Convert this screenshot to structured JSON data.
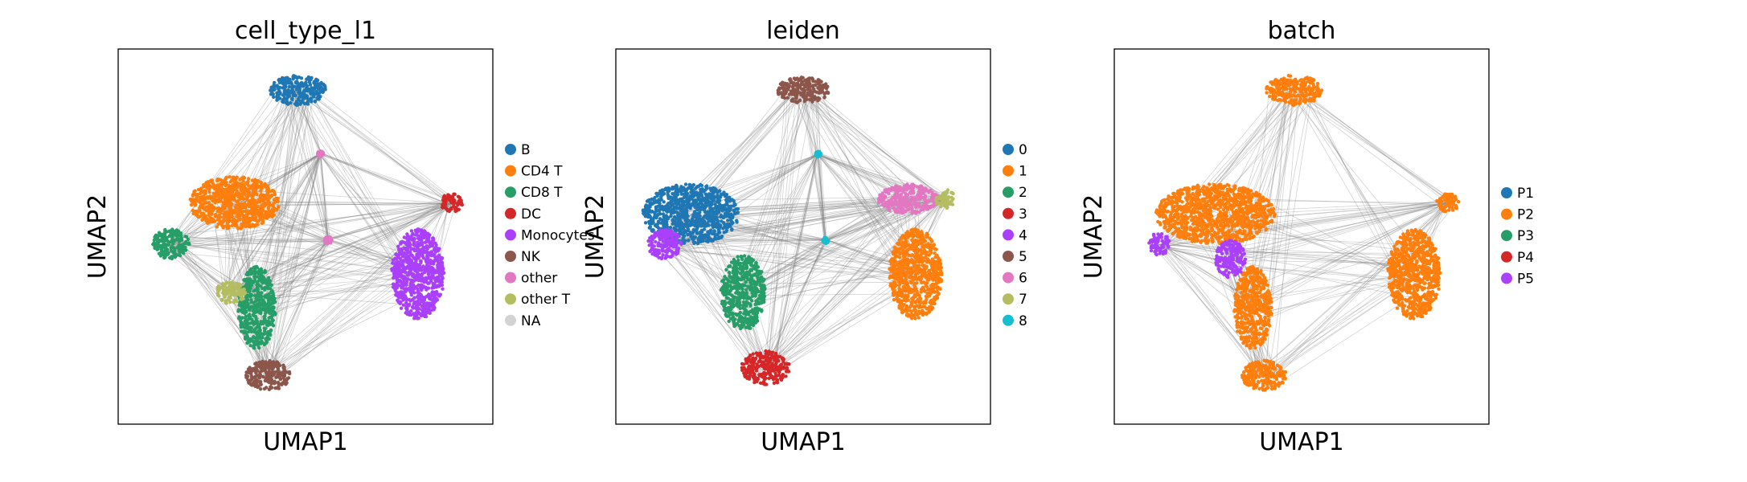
{
  "chart_data": [
    {
      "type": "scatter",
      "title": "cell_type_l1",
      "xlabel": "UMAP1",
      "ylabel": "UMAP2",
      "grid": false,
      "ticks": false,
      "legend_position": "right",
      "legend": [
        {
          "label": "B",
          "color": "#1f77b4"
        },
        {
          "label": "CD4 T",
          "color": "#ff7f0e"
        },
        {
          "label": "CD8 T",
          "color": "#279e68"
        },
        {
          "label": "DC",
          "color": "#d62728"
        },
        {
          "label": "Monocytes",
          "color": "#aa40fc"
        },
        {
          "label": "NK",
          "color": "#8c564b"
        },
        {
          "label": "other",
          "color": "#e377c2"
        },
        {
          "label": "other T",
          "color": "#b5bd61"
        },
        {
          "label": "NA",
          "color": "#d3d3d3"
        }
      ],
      "clusters": [
        {
          "x": 0.48,
          "y": 0.89,
          "rx": 0.075,
          "ry": 0.04,
          "color": "#1f77b4"
        },
        {
          "x": 0.31,
          "y": 0.59,
          "rx": 0.12,
          "ry": 0.07,
          "color": "#ff7f0e"
        },
        {
          "x": 0.14,
          "y": 0.48,
          "rx": 0.05,
          "ry": 0.04,
          "color": "#279e68"
        },
        {
          "x": 0.37,
          "y": 0.31,
          "rx": 0.05,
          "ry": 0.11,
          "color": "#279e68"
        },
        {
          "x": 0.3,
          "y": 0.35,
          "rx": 0.04,
          "ry": 0.03,
          "color": "#b5bd61"
        },
        {
          "x": 0.8,
          "y": 0.4,
          "rx": 0.07,
          "ry": 0.12,
          "color": "#aa40fc"
        },
        {
          "x": 0.89,
          "y": 0.59,
          "rx": 0.03,
          "ry": 0.025,
          "color": "#d62728"
        },
        {
          "x": 0.4,
          "y": 0.13,
          "rx": 0.06,
          "ry": 0.04,
          "color": "#8c564b"
        },
        {
          "x": 0.56,
          "y": 0.49,
          "rx": 0.01,
          "ry": 0.01,
          "color": "#e377c2"
        },
        {
          "x": 0.54,
          "y": 0.72,
          "rx": 0.008,
          "ry": 0.008,
          "color": "#e377c2"
        }
      ]
    },
    {
      "type": "scatter",
      "title": "leiden",
      "xlabel": "UMAP1",
      "ylabel": "UMAP2",
      "grid": false,
      "ticks": false,
      "legend_position": "right",
      "legend": [
        {
          "label": "0",
          "color": "#1f77b4"
        },
        {
          "label": "1",
          "color": "#ff7f0e"
        },
        {
          "label": "2",
          "color": "#279e68"
        },
        {
          "label": "3",
          "color": "#d62728"
        },
        {
          "label": "4",
          "color": "#aa40fc"
        },
        {
          "label": "5",
          "color": "#8c564b"
        },
        {
          "label": "6",
          "color": "#e377c2"
        },
        {
          "label": "7",
          "color": "#b5bd61"
        },
        {
          "label": "8",
          "color": "#17becf"
        }
      ],
      "clusters": [
        {
          "x": 0.2,
          "y": 0.56,
          "rx": 0.13,
          "ry": 0.08,
          "color": "#1f77b4"
        },
        {
          "x": 0.8,
          "y": 0.4,
          "rx": 0.07,
          "ry": 0.12,
          "color": "#ff7f0e"
        },
        {
          "x": 0.34,
          "y": 0.35,
          "rx": 0.06,
          "ry": 0.1,
          "color": "#279e68"
        },
        {
          "x": 0.4,
          "y": 0.15,
          "rx": 0.065,
          "ry": 0.045,
          "color": "#d62728"
        },
        {
          "x": 0.13,
          "y": 0.48,
          "rx": 0.045,
          "ry": 0.04,
          "color": "#aa40fc"
        },
        {
          "x": 0.5,
          "y": 0.89,
          "rx": 0.07,
          "ry": 0.035,
          "color": "#8c564b"
        },
        {
          "x": 0.78,
          "y": 0.6,
          "rx": 0.08,
          "ry": 0.04,
          "color": "#e377c2"
        },
        {
          "x": 0.88,
          "y": 0.6,
          "rx": 0.025,
          "ry": 0.025,
          "color": "#b5bd61"
        },
        {
          "x": 0.54,
          "y": 0.72,
          "rx": 0.008,
          "ry": 0.008,
          "color": "#17becf"
        },
        {
          "x": 0.56,
          "y": 0.49,
          "rx": 0.008,
          "ry": 0.008,
          "color": "#17becf"
        }
      ]
    },
    {
      "type": "scatter",
      "title": "batch",
      "xlabel": "UMAP1",
      "ylabel": "UMAP2",
      "grid": false,
      "ticks": false,
      "legend_position": "right",
      "legend": [
        {
          "label": "P1",
          "color": "#1f77b4"
        },
        {
          "label": "P2",
          "color": "#ff7f0e"
        },
        {
          "label": "P3",
          "color": "#279e68"
        },
        {
          "label": "P4",
          "color": "#d62728"
        },
        {
          "label": "P5",
          "color": "#aa40fc"
        }
      ],
      "clusters": [
        {
          "x": 0.48,
          "y": 0.89,
          "rx": 0.075,
          "ry": 0.04,
          "color": "#ff7f0e"
        },
        {
          "x": 0.27,
          "y": 0.56,
          "rx": 0.16,
          "ry": 0.08,
          "color": "#ff7f0e"
        },
        {
          "x": 0.37,
          "y": 0.31,
          "rx": 0.05,
          "ry": 0.11,
          "color": "#ff7f0e"
        },
        {
          "x": 0.8,
          "y": 0.4,
          "rx": 0.07,
          "ry": 0.12,
          "color": "#ff7f0e"
        },
        {
          "x": 0.4,
          "y": 0.13,
          "rx": 0.06,
          "ry": 0.04,
          "color": "#ff7f0e"
        },
        {
          "x": 0.89,
          "y": 0.59,
          "rx": 0.03,
          "ry": 0.025,
          "color": "#ff7f0e"
        },
        {
          "x": 0.31,
          "y": 0.44,
          "rx": 0.04,
          "ry": 0.05,
          "color": "#aa40fc"
        },
        {
          "x": 0.12,
          "y": 0.48,
          "rx": 0.03,
          "ry": 0.03,
          "color": "#aa40fc"
        }
      ]
    }
  ]
}
